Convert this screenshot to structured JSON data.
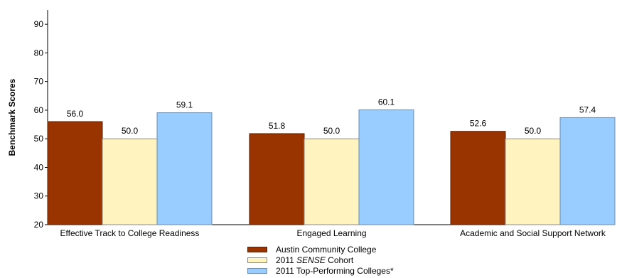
{
  "chart_data": {
    "type": "bar",
    "ylabel": "Benchmark Scores",
    "xlabel": "",
    "ylim": [
      20,
      95
    ],
    "yticks": [
      20,
      30,
      40,
      50,
      60,
      70,
      80,
      90
    ],
    "categories": [
      "Effective Track to College Readiness",
      "Engaged Learning",
      "Academic and Social Support Network"
    ],
    "series": [
      {
        "name": "Austin Community College",
        "values": [
          56.0,
          51.8,
          52.6
        ],
        "color": "#993300",
        "stroke": "#5a1e00"
      },
      {
        "name": "2011 SENSE Cohort",
        "values": [
          50.0,
          50.0,
          50.0
        ],
        "color": "#fff3c0",
        "stroke": "#8a8a8a"
      },
      {
        "name": "2011 Top-Performing Colleges*",
        "values": [
          59.1,
          60.1,
          57.4
        ],
        "color": "#99ccff",
        "stroke": "#6a8cb0"
      }
    ],
    "grid": false,
    "legend_position": "bottom-center"
  },
  "legend": {
    "item1_label": "Austin Community College",
    "item2_prefix": "2011 ",
    "item2_italic": "SENSE",
    "item2_suffix": " Cohort",
    "item3_label": "2011 Top-Performing Colleges*"
  }
}
